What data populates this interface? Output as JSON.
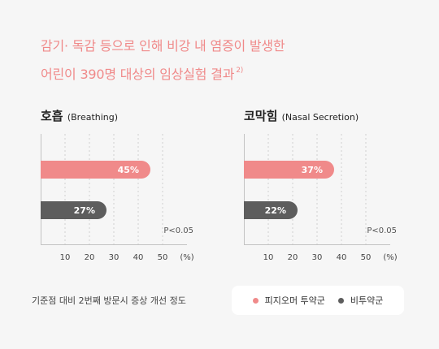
{
  "title": {
    "line1": "감기· 독감 등으로 인해 비강 내 염증이 발생한",
    "line2": "어린이 390명 대상의 임상실험 결과",
    "ref": "2)"
  },
  "colors": {
    "treated": "#f08a8a",
    "untreated": "#5d5d5d"
  },
  "legend": {
    "treated": "피지오머 투약군",
    "untreated": "비투약군"
  },
  "footnote": "기준점 대비 2번째 방문시 증상 개선 정도",
  "chart_data": [
    {
      "type": "bar",
      "orientation": "horizontal",
      "title": "호흡",
      "subtitle": "(Breathing)",
      "series": [
        {
          "name": "피지오머 투약군",
          "values": [
            45
          ]
        },
        {
          "name": "비투약군",
          "values": [
            27
          ]
        }
      ],
      "value_labels": [
        "45%",
        "27%"
      ],
      "annotation": "P<0.05",
      "xticks": [
        "10",
        "20",
        "30",
        "40",
        "50",
        "(%)"
      ],
      "xlim": [
        0,
        60
      ],
      "grid": true
    },
    {
      "type": "bar",
      "orientation": "horizontal",
      "title": "코막힘",
      "subtitle": "(Nasal Secretion)",
      "series": [
        {
          "name": "피지오머 투약군",
          "values": [
            37
          ]
        },
        {
          "name": "비투약군",
          "values": [
            22
          ]
        }
      ],
      "value_labels": [
        "37%",
        "22%"
      ],
      "annotation": "P<0.05",
      "xticks": [
        "10",
        "20",
        "30",
        "40",
        "50",
        "(%)"
      ],
      "xlim": [
        0,
        60
      ],
      "grid": true
    }
  ]
}
